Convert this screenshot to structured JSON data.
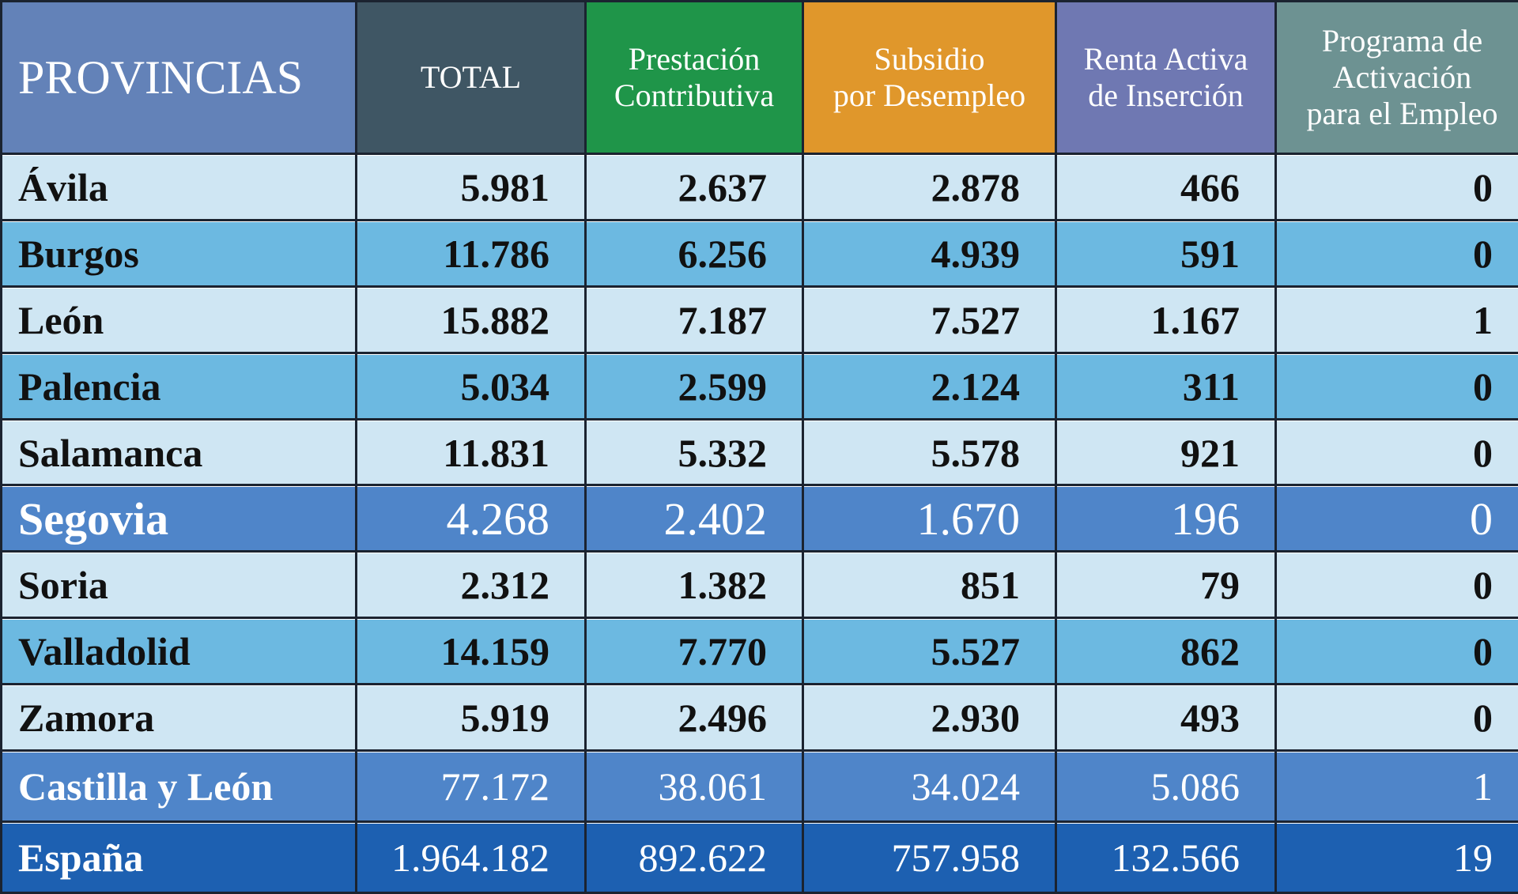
{
  "table": {
    "headers": [
      "PROVINCIAS",
      "TOTAL",
      "Prestación\nContributiva",
      "Subsidio\npor Desempleo",
      "Renta Activa\nde Inserción",
      "Programa de\nActivación\npara el Empleo"
    ],
    "rows": [
      [
        "Ávila",
        "5.981",
        "2.637",
        "2.878",
        "466",
        "0"
      ],
      [
        "Burgos",
        "11.786",
        "6.256",
        "4.939",
        "591",
        "0"
      ],
      [
        "León",
        "15.882",
        "7.187",
        "7.527",
        "1.167",
        "1"
      ],
      [
        "Palencia",
        "5.034",
        "2.599",
        "2.124",
        "311",
        "0"
      ],
      [
        "Salamanca",
        "11.831",
        "5.332",
        "5.578",
        "921",
        "0"
      ],
      [
        "Segovia",
        "4.268",
        "2.402",
        "1.670",
        "196",
        "0"
      ],
      [
        "Soria",
        "2.312",
        "1.382",
        "851",
        "79",
        "0"
      ],
      [
        "Valladolid",
        "14.159",
        "7.770",
        "5.527",
        "862",
        "0"
      ],
      [
        "Zamora",
        "5.919",
        "2.496",
        "2.930",
        "493",
        "0"
      ],
      [
        "Castilla y León",
        "77.172",
        "38.061",
        "34.024",
        "5.086",
        "1"
      ],
      [
        "España",
        "1.964.182",
        "892.622",
        "757.958",
        "132.566",
        "19"
      ]
    ]
  }
}
